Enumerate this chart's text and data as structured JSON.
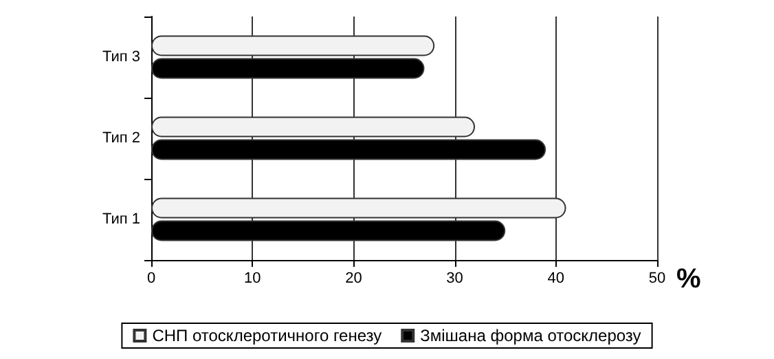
{
  "chart_data": {
    "type": "bar",
    "orientation": "horizontal",
    "categories": [
      "Тип 3",
      "Тип 2",
      "Тип 1"
    ],
    "series": [
      {
        "name": "СНП отосклеротичного генезу",
        "color": "#f2f2f2",
        "values": [
          28,
          32,
          41
        ]
      },
      {
        "name": "Змішана форма отосклерозу",
        "color": "#000000",
        "values": [
          27,
          39,
          35
        ]
      }
    ],
    "xlim": [
      0,
      50
    ],
    "xticks": [
      0,
      10,
      20,
      30,
      40,
      50
    ],
    "xlabel": "%",
    "grid": "x",
    "legend": "bottom"
  }
}
